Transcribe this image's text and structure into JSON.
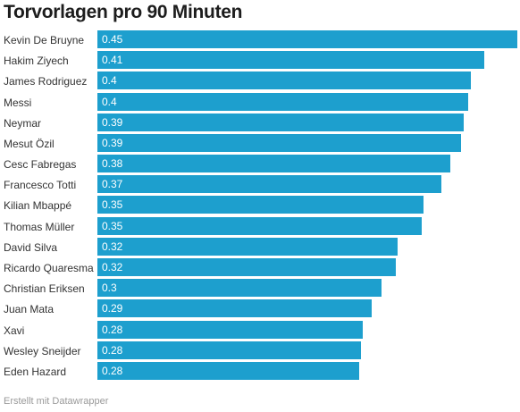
{
  "chart_data": {
    "type": "bar",
    "orientation": "horizontal",
    "title": "Torvorlagen pro 90 Minuten",
    "xlabel": "",
    "ylabel": "",
    "xlim": [
      0,
      0.45
    ],
    "grid": false,
    "bar_color": "#1d9fce",
    "categories": [
      "Kevin De Bruyne",
      "Hakim Ziyech",
      "James Rodriguez",
      "Messi",
      "Neymar",
      "Mesut Özil",
      "Cesc Fabregas",
      "Francesco Totti",
      "Kilian Mbappé",
      "Thomas Müller",
      "David Silva",
      "Ricardo Quaresma",
      "Christian Eriksen",
      "Juan Mata",
      "Xavi",
      "Wesley Sneijder",
      "Eden Hazard"
    ],
    "values": [
      0.45,
      0.415,
      0.4,
      0.397,
      0.393,
      0.39,
      0.378,
      0.369,
      0.349,
      0.348,
      0.322,
      0.32,
      0.304,
      0.294,
      0.284,
      0.282,
      0.281
    ],
    "value_labels": [
      "0.45",
      "0.41",
      "0.4",
      "0.4",
      "0.39",
      "0.39",
      "0.38",
      "0.37",
      "0.35",
      "0.35",
      "0.32",
      "0.32",
      "0.3",
      "0.29",
      "0.28",
      "0.28",
      "0.28"
    ]
  },
  "footer": {
    "credit": "Erstellt mit Datawrapper"
  }
}
